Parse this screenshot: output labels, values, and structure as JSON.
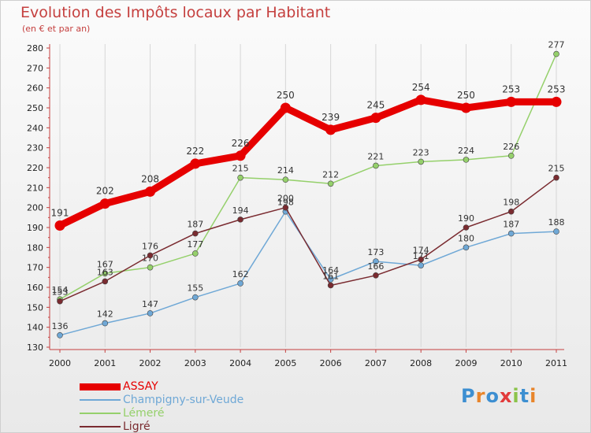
{
  "header": {
    "title": "Evolution des Impôts locaux par Habitant",
    "subtitle": "(en € et par an)"
  },
  "logo": {
    "text": "Proxiti"
  },
  "chart_data": {
    "type": "line",
    "title": "Evolution des Impôts locaux par Habitant",
    "subtitle": "(en € et par an)",
    "xlabel": "",
    "ylabel": "",
    "x": [
      "2000",
      "2001",
      "2002",
      "2003",
      "2004",
      "2005",
      "2006",
      "2007",
      "2008",
      "2009",
      "2010",
      "2011"
    ],
    "ylim": [
      130,
      280
    ],
    "yticks": [
      130,
      140,
      150,
      160,
      170,
      180,
      190,
      200,
      210,
      220,
      230,
      240,
      250,
      260,
      270,
      280
    ],
    "grid": "vertical",
    "legend_position": "bottom-left",
    "series": [
      {
        "name": "ASSAY",
        "color": "#e60000",
        "values": [
          191,
          202,
          208,
          222,
          226,
          250,
          239,
          245,
          254,
          250,
          253,
          253
        ]
      },
      {
        "name": "Champigny-sur-Veude",
        "color": "#6fa8d6",
        "values": [
          136,
          142,
          147,
          155,
          162,
          198,
          164,
          173,
          171,
          180,
          187,
          188
        ]
      },
      {
        "name": "Lémeré",
        "color": "#95d06b",
        "values": [
          154,
          167,
          170,
          177,
          215,
          214,
          212,
          221,
          223,
          224,
          226,
          277
        ]
      },
      {
        "name": "Ligré",
        "color": "#7a2b30",
        "values": [
          153,
          163,
          176,
          187,
          194,
          200,
          161,
          166,
          174,
          190,
          198,
          215
        ]
      }
    ]
  }
}
